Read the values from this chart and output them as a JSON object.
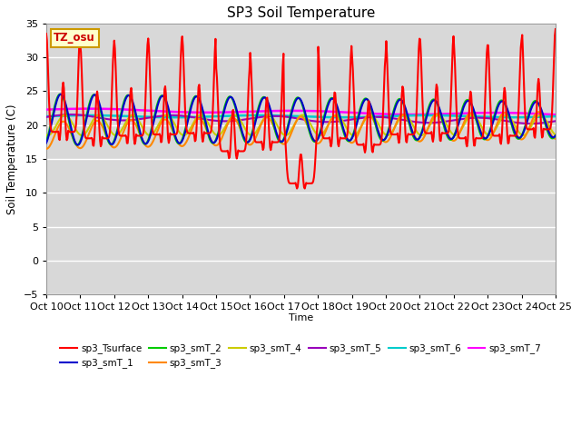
{
  "title": "SP3 Soil Temperature",
  "ylabel": "Soil Temperature (C)",
  "xlabel": "Time",
  "ylim": [
    -5,
    35
  ],
  "yticks": [
    -5,
    0,
    5,
    10,
    15,
    20,
    25,
    30,
    35
  ],
  "xtick_labels": [
    "Oct 10",
    "Oct 11",
    "Oct 12",
    "Oct 13",
    "Oct 14",
    "Oct 15",
    "Oct 16",
    "Oct 17",
    "Oct 18",
    "Oct 19",
    "Oct 20",
    "Oct 21",
    "Oct 22",
    "Oct 23",
    "Oct 24",
    "Oct 25"
  ],
  "bg_color": "#d8d8d8",
  "fig_bg": "#ffffff",
  "series_colors": {
    "sp3_Tsurface": "#ff0000",
    "sp3_smT_1": "#0000cc",
    "sp3_smT_2": "#00cc00",
    "sp3_smT_3": "#ff8800",
    "sp3_smT_4": "#cccc00",
    "sp3_smT_5": "#9900bb",
    "sp3_smT_6": "#00cccc",
    "sp3_smT_7": "#ff00ff"
  },
  "annotation_text": "TZ_osu",
  "annotation_color": "#cc0000",
  "annotation_bg": "#ffffcc",
  "annotation_border": "#cc9900",
  "n_days": 15,
  "pts_per_day": 48
}
